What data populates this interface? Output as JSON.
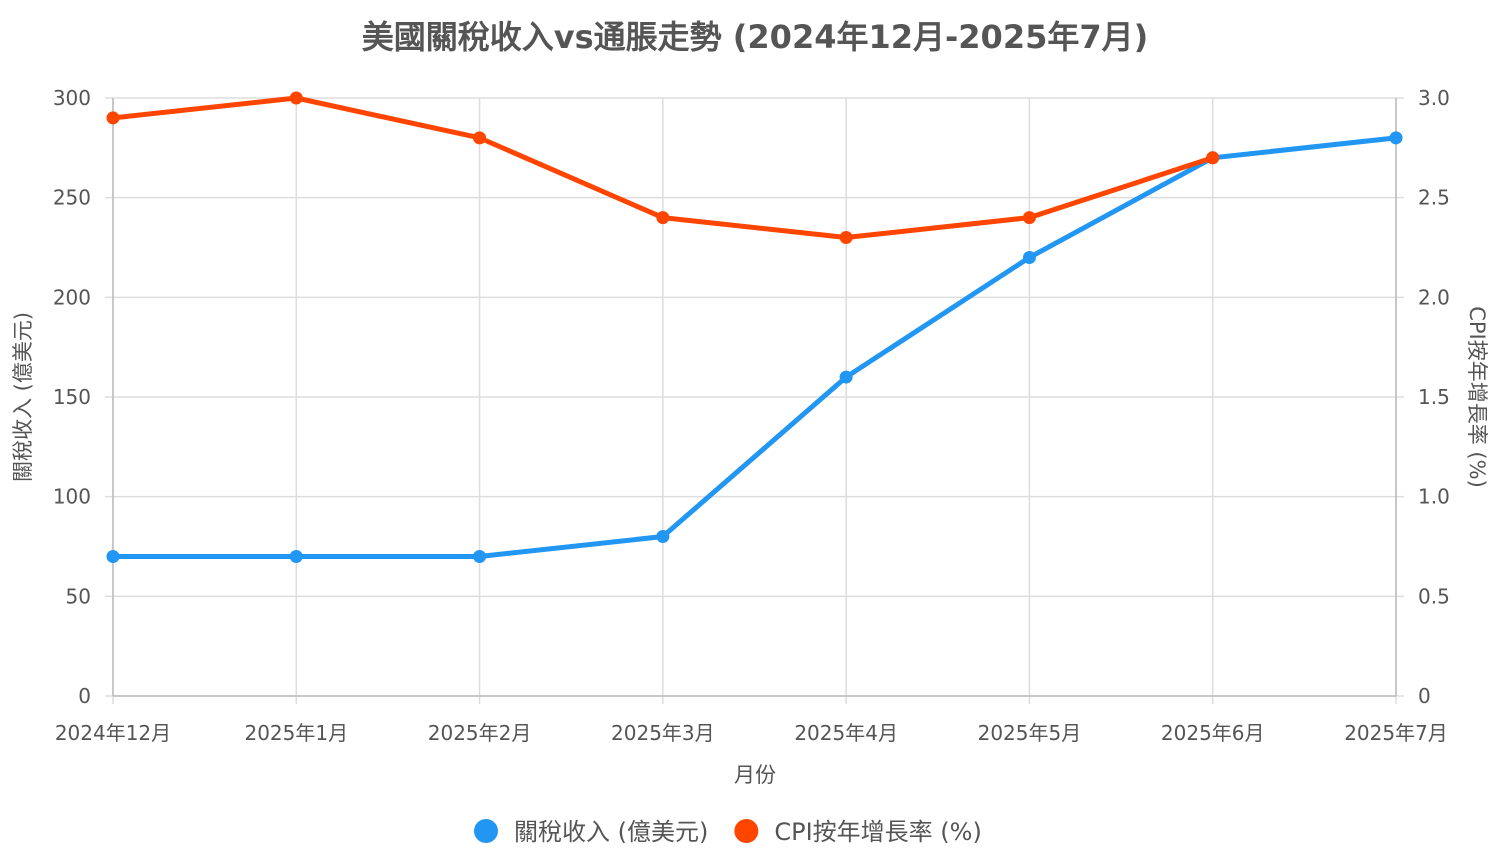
{
  "chart_data": {
    "type": "line",
    "title": "美國關稅收入vs通脹走勢 (2024年12月-2025年7月)",
    "xlabel": "月份",
    "categories": [
      "2024年12月",
      "2025年1月",
      "2025年2月",
      "2025年3月",
      "2025年4月",
      "2025年5月",
      "2025年6月",
      "2025年7月"
    ],
    "y_left": {
      "label": "關稅收入 (億美元)",
      "range": [
        0,
        300
      ],
      "ticks": [
        "0",
        "50",
        "100",
        "150",
        "200",
        "250",
        "300"
      ],
      "tick_values": [
        0,
        50,
        100,
        150,
        200,
        250,
        300
      ]
    },
    "y_right": {
      "label": "CPI按年增長率 (%)",
      "range": [
        0,
        3
      ],
      "ticks": [
        "0",
        "0.5",
        "1.0",
        "1.5",
        "2.0",
        "2.5",
        "3.0"
      ],
      "tick_values": [
        0,
        0.5,
        1.0,
        1.5,
        2.0,
        2.5,
        3.0
      ]
    },
    "series": [
      {
        "name": "關稅收入 (億美元)",
        "axis": "left",
        "color": "#2196F3",
        "values": [
          70,
          70,
          70,
          80,
          160,
          220,
          270,
          280
        ]
      },
      {
        "name": "CPI按年增長率 (%)",
        "axis": "right",
        "color": "#FF4500",
        "values": [
          2.9,
          3.0,
          2.8,
          2.4,
          2.3,
          2.4,
          2.7,
          null
        ]
      }
    ],
    "grid": true,
    "legend_position": "bottom"
  }
}
